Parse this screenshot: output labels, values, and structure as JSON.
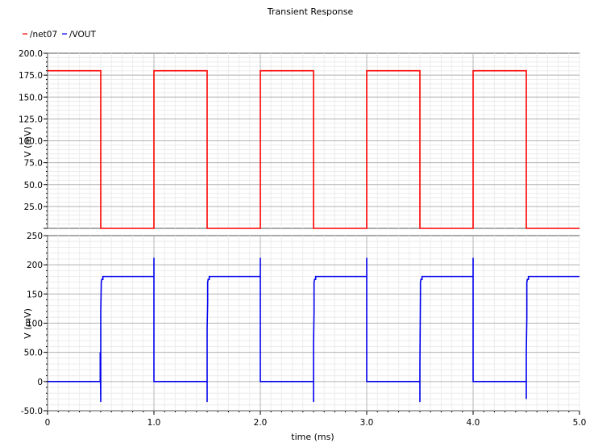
{
  "chart_data": {
    "type": "line",
    "title": "Transient Response",
    "xlabel": "time (ms)",
    "xlim": [
      0,
      5.0
    ],
    "x_ticks": [
      "0",
      "1.0",
      "2.0",
      "3.0",
      "4.0",
      "5.0"
    ],
    "grid": true,
    "legend_position": "top-left",
    "legend": [
      {
        "name": "/net07",
        "color": "#ff0000"
      },
      {
        "name": "/VOUT",
        "color": "#0000ee"
      }
    ],
    "panels": [
      {
        "ylabel": "V (mV)",
        "ylim": [
          0,
          200.0
        ],
        "y_ticks": [
          {
            "v": 0,
            "label": ""
          },
          {
            "v": 25,
            "label": "25.0"
          },
          {
            "v": 50,
            "label": "50.0"
          },
          {
            "v": 75,
            "label": "75.0"
          },
          {
            "v": 100,
            "label": "100.0"
          },
          {
            "v": 125,
            "label": "125.0"
          },
          {
            "v": 150,
            "label": "150.0"
          },
          {
            "v": 175,
            "label": "175.0"
          },
          {
            "v": 200,
            "label": "200.0"
          }
        ],
        "series": [
          {
            "name": "/net07",
            "color": "#ff0000",
            "x": [
              0,
              0.5,
              0.5,
              1.0,
              1.0,
              1.5,
              1.5,
              2.0,
              2.0,
              2.5,
              2.5,
              3.0,
              3.0,
              3.5,
              3.5,
              4.0,
              4.0,
              4.5,
              4.5,
              5.0
            ],
            "y": [
              180,
              180,
              0,
              0,
              180,
              180,
              0,
              0,
              180,
              180,
              0,
              0,
              180,
              180,
              0,
              0,
              180,
              180,
              0,
              0
            ]
          }
        ]
      },
      {
        "ylabel": "V (mV)",
        "ylim": [
          -50.0,
          250
        ],
        "y_ticks": [
          {
            "v": -50,
            "label": "-50.0"
          },
          {
            "v": 0,
            "label": "0"
          },
          {
            "v": 50,
            "label": "50.0"
          },
          {
            "v": 100,
            "label": "100"
          },
          {
            "v": 150,
            "label": "150"
          },
          {
            "v": 200,
            "label": "200"
          },
          {
            "v": 250,
            "label": "250"
          }
        ],
        "series": [
          {
            "name": "/VOUT",
            "color": "#0000ee",
            "x": [
              0,
              0.495,
              0.495,
              0.5,
              0.5,
              0.505,
              0.51,
              0.52,
              0.52,
              1.0,
              1.0,
              1.0,
              1.0,
              1.5,
              1.5,
              1.5,
              1.505,
              1.505,
              1.51,
              1.52,
              1.52,
              2.0,
              2.0,
              2.0,
              2.0,
              2.5,
              2.5,
              2.5,
              2.505,
              2.505,
              2.51,
              2.52,
              2.52,
              3.0,
              3.0,
              3.0,
              3.0,
              3.5,
              3.5,
              3.5,
              3.505,
              3.505,
              3.51,
              3.52,
              3.52,
              4.0,
              4.0,
              4.0,
              4.0,
              4.5,
              4.5,
              4.5,
              4.505,
              4.505,
              4.51,
              4.52,
              4.52,
              5.0
            ],
            "y": [
              0,
              0,
              50,
              -35,
              120,
              170,
              175,
              175,
              180,
              180,
              212,
              140,
              0,
              0,
              -35,
              90,
              135,
              170,
              175,
              175,
              180,
              180,
              212,
              140,
              0,
              0,
              -35,
              65,
              120,
              170,
              175,
              175,
              180,
              180,
              212,
              140,
              0,
              0,
              -35,
              25,
              155,
              170,
              175,
              175,
              180,
              180,
              212,
              105,
              0,
              0,
              -30,
              50,
              110,
              170,
              175,
              175,
              180,
              180
            ]
          }
        ]
      }
    ]
  }
}
